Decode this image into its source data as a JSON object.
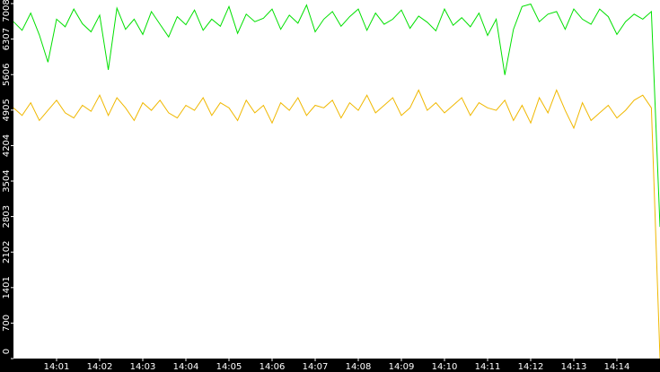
{
  "chart_data": {
    "type": "line",
    "x": [
      0,
      0.2,
      0.4,
      0.6,
      0.8,
      1,
      1.2,
      1.4,
      1.6,
      1.8,
      2,
      2.2,
      2.4,
      2.6,
      2.8,
      3,
      3.2,
      3.4,
      3.6,
      3.8,
      4,
      4.2,
      4.4,
      4.6,
      4.8,
      5,
      5.2,
      5.4,
      5.6,
      5.8,
      6,
      6.2,
      6.4,
      6.6,
      6.8,
      7,
      7.2,
      7.4,
      7.6,
      7.8,
      8,
      8.2,
      8.4,
      8.6,
      8.8,
      9,
      9.2,
      9.4,
      9.6,
      9.8,
      10,
      10.2,
      10.4,
      10.6,
      10.8,
      11,
      11.2,
      11.4,
      11.6,
      11.8,
      12,
      12.2,
      12.4,
      12.6,
      12.8,
      13,
      13.2,
      13.4,
      13.6,
      13.8,
      14,
      14.2,
      14.4,
      14.6,
      14.8,
      15
    ],
    "series": [
      {
        "color": "#00e000",
        "values": [
          6650,
          6480,
          6820,
          6390,
          5850,
          6700,
          6550,
          6900,
          6610,
          6450,
          6780,
          5700,
          6920,
          6500,
          6700,
          6400,
          6850,
          6600,
          6350,
          6750,
          6590,
          6880,
          6480,
          6700,
          6560,
          6950,
          6420,
          6800,
          6650,
          6720,
          6900,
          6500,
          6780,
          6620,
          6980,
          6450,
          6700,
          6850,
          6560,
          6750,
          6900,
          6480,
          6820,
          6600,
          6700,
          6880,
          6520,
          6760,
          6640,
          6470,
          6900,
          6580,
          6730,
          6550,
          6820,
          6380,
          6700,
          5600,
          6500,
          6950,
          7000,
          6650,
          6800,
          6850,
          6500,
          6900,
          6700,
          6600,
          6900,
          6750,
          6400,
          6650,
          6800,
          6700,
          6850,
          2600
        ]
      },
      {
        "color": "#f0b800",
        "values": [
          4950,
          4800,
          5050,
          4700,
          4900,
          5100,
          4850,
          4750,
          5000,
          4880,
          5200,
          4800,
          5150,
          4950,
          4700,
          5050,
          4900,
          5100,
          4850,
          4750,
          5000,
          4900,
          5150,
          4800,
          5050,
          4950,
          4700,
          5100,
          4850,
          5000,
          4650,
          5050,
          4900,
          5150,
          4800,
          5000,
          4950,
          5100,
          4750,
          5050,
          4900,
          5200,
          4850,
          5000,
          5150,
          4800,
          4950,
          5300,
          4900,
          5050,
          4850,
          5000,
          5150,
          4800,
          5050,
          4950,
          4900,
          5100,
          4700,
          5000,
          4650,
          5150,
          4850,
          5300,
          4900,
          4550,
          5050,
          4700,
          4850,
          5000,
          4750,
          4900,
          5100,
          5200,
          4950,
          0
        ]
      }
    ],
    "xlim": [
      0,
      15
    ],
    "xticks": [
      {
        "value": 1,
        "label": "14:01"
      },
      {
        "value": 2,
        "label": "14:02"
      },
      {
        "value": 3,
        "label": "14:03"
      },
      {
        "value": 4,
        "label": "14:04"
      },
      {
        "value": 5,
        "label": "14:05"
      },
      {
        "value": 6,
        "label": "14:06"
      },
      {
        "value": 7,
        "label": "14:07"
      },
      {
        "value": 8,
        "label": "14:08"
      },
      {
        "value": 9,
        "label": "14:09"
      },
      {
        "value": 10,
        "label": "14:10"
      },
      {
        "value": 11,
        "label": "14:11"
      },
      {
        "value": 12,
        "label": "14:12"
      },
      {
        "value": 13,
        "label": "14:13"
      },
      {
        "value": 14,
        "label": "14:14"
      }
    ],
    "ylim": [
      0,
      7008
    ],
    "yticks": [
      0,
      700,
      1401,
      2102,
      2803,
      3504,
      4204,
      4905,
      5606,
      6307,
      7008
    ]
  }
}
